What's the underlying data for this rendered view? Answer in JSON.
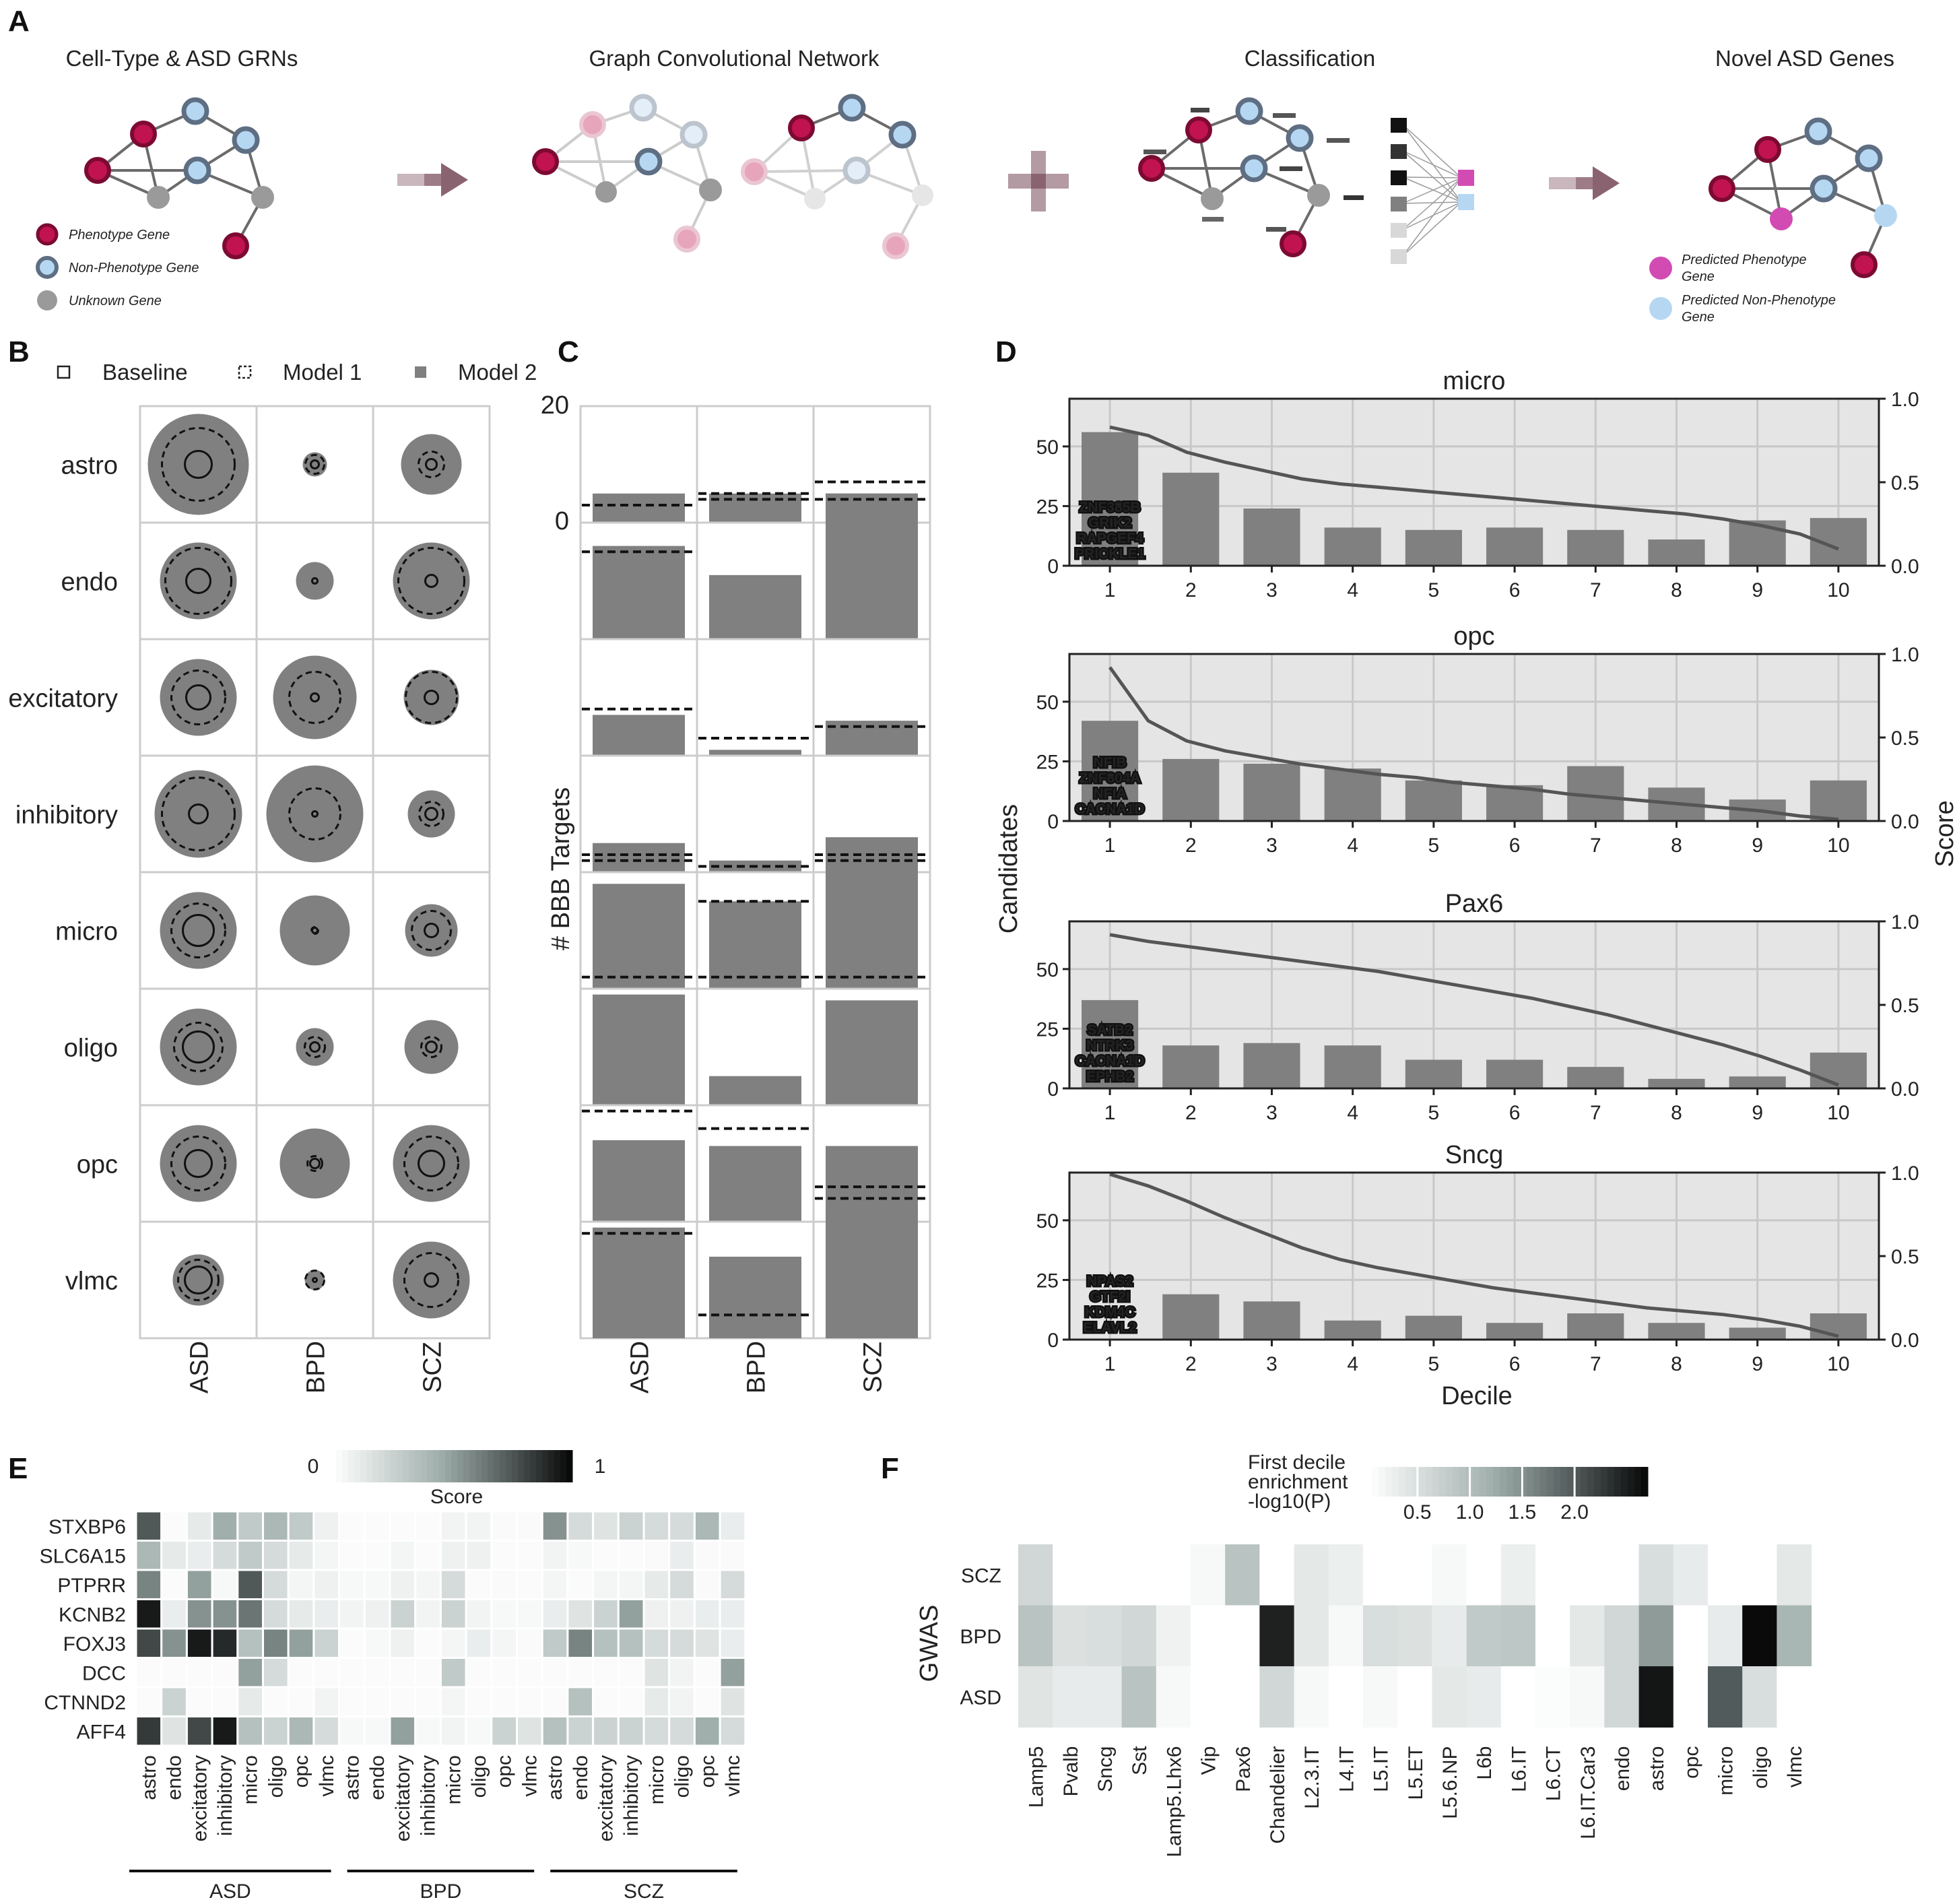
{
  "panel_labels": [
    "A",
    "B",
    "C",
    "D",
    "E",
    "F"
  ],
  "panelA": {
    "stages": [
      "Cell-Type & ASD GRNs",
      "Graph Convolutional Network",
      "Classification",
      "Novel ASD Genes"
    ],
    "legend_left": [
      "Phenotype Gene",
      "Non-Phenotype Gene",
      "Unknown Gene"
    ],
    "legend_right": [
      [
        "Predicted Phenotype",
        "Gene"
      ],
      [
        "Predicted Non-Phenotype",
        "Gene"
      ]
    ],
    "colors": {
      "phenotype": "#c0134f",
      "non_phenotype": "#5e6e83",
      "unknown": "#9a9a9a",
      "pred_pheno": "#d24bb3",
      "pred_non": "#b6d7f2"
    }
  },
  "panelB": {
    "legend": [
      "Baseline",
      "Model 1",
      "Model 2"
    ],
    "rows": [
      "astro",
      "endo",
      "excitatory",
      "inhibitory",
      "micro",
      "oligo",
      "opc",
      "vlmc"
    ],
    "cols": [
      "ASD",
      "BPD",
      "SCZ"
    ],
    "model2_radius": [
      [
        75,
        18,
        45
      ],
      [
        57,
        28,
        57
      ],
      [
        57,
        62,
        41
      ],
      [
        65,
        72,
        35
      ],
      [
        57,
        52,
        39
      ],
      [
        57,
        28,
        40
      ],
      [
        57,
        52,
        57
      ],
      [
        38,
        15,
        57
      ]
    ],
    "model1_radius": [
      [
        54,
        14,
        19
      ],
      [
        49,
        0,
        49
      ],
      [
        40,
        38,
        38
      ],
      [
        54,
        38,
        18
      ],
      [
        40,
        5,
        29
      ],
      [
        36,
        15,
        15
      ],
      [
        40,
        11,
        40
      ],
      [
        30,
        14,
        40
      ]
    ],
    "baseline_radius": [
      [
        20,
        6,
        8
      ],
      [
        18,
        4,
        9
      ],
      [
        18,
        6,
        10
      ],
      [
        14,
        4,
        9
      ],
      [
        23,
        4,
        10
      ],
      [
        23,
        7,
        8
      ],
      [
        20,
        7,
        19
      ],
      [
        20,
        3,
        10
      ]
    ]
  },
  "panelC": {
    "ylabel": "# BBB Targets",
    "ymax_label": "20",
    "ymin_label": "0",
    "cols": [
      "ASD",
      "BPD",
      "SCZ"
    ],
    "chart_data": {
      "type": "bar",
      "ylabel": "# BBB Targets",
      "categories": [
        "ASD",
        "BPD",
        "SCZ"
      ],
      "rows": [
        "astro",
        "endo",
        "excitatory",
        "inhibitory",
        "micro",
        "oligo",
        "opc",
        "vlmc"
      ],
      "ylim": [
        0,
        20
      ],
      "bar_values": [
        [
          5,
          5,
          5
        ],
        [
          16,
          11,
          25
        ],
        [
          7,
          1,
          6
        ],
        [
          5,
          2,
          6
        ],
        [
          18,
          15,
          22
        ],
        [
          19,
          5,
          18
        ],
        [
          14,
          13,
          13
        ],
        [
          19,
          14,
          25
        ]
      ],
      "dashed_values": [
        [
          3,
          5,
          7
        ],
        [
          15,
          24,
          24
        ],
        [
          8,
          3,
          5
        ],
        [
          3,
          1,
          3
        ],
        [
          22,
          15,
          22
        ],
        [
          22,
          22,
          22
        ],
        [
          19,
          16,
          6
        ],
        [
          18,
          4,
          24
        ]
      ]
    }
  },
  "panelD": {
    "ylabel_left": "Candidates",
    "ylabel_right": "Score",
    "xlabel": "Decile",
    "left_ticks": [
      "0",
      "25",
      "50"
    ],
    "right_ticks": [
      "0.0",
      "0.5",
      "1.0"
    ],
    "deciles": [
      "1",
      "2",
      "3",
      "4",
      "5",
      "6",
      "7",
      "8",
      "9",
      "10"
    ],
    "chart_data": [
      {
        "type": "bar",
        "title": "micro",
        "x": [
          1,
          2,
          3,
          4,
          5,
          6,
          7,
          8,
          9,
          10
        ],
        "values": [
          56,
          39,
          24,
          16,
          15,
          16,
          15,
          11,
          19,
          20
        ],
        "ylim": [
          0,
          70
        ],
        "genes": [
          "ZNF385B",
          "GRIK2",
          "RAPGEF4",
          "PRICKLE1"
        ],
        "score_curve": [
          0.83,
          0.78,
          0.68,
          0.62,
          0.57,
          0.52,
          0.49,
          0.47,
          0.45,
          0.43,
          0.41,
          0.39,
          0.37,
          0.35,
          0.33,
          0.31,
          0.28,
          0.24,
          0.19,
          0.1
        ]
      },
      {
        "type": "bar",
        "title": "opc",
        "x": [
          1,
          2,
          3,
          4,
          5,
          6,
          7,
          8,
          9,
          10
        ],
        "values": [
          42,
          26,
          24,
          22,
          17,
          15,
          23,
          14,
          9,
          17
        ],
        "ylim": [
          0,
          70
        ],
        "genes": [
          "NFIB",
          "ZNF804A",
          "NFIA",
          "CACNA1D"
        ],
        "score_curve": [
          0.92,
          0.6,
          0.48,
          0.42,
          0.38,
          0.34,
          0.31,
          0.28,
          0.26,
          0.23,
          0.21,
          0.19,
          0.16,
          0.14,
          0.12,
          0.1,
          0.08,
          0.06,
          0.03,
          0.01
        ]
      },
      {
        "type": "bar",
        "title": "Pax6",
        "x": [
          1,
          2,
          3,
          4,
          5,
          6,
          7,
          8,
          9,
          10
        ],
        "values": [
          37,
          18,
          19,
          18,
          12,
          12,
          9,
          4,
          5,
          15
        ],
        "ylim": [
          0,
          70
        ],
        "genes": [
          "SATB2",
          "NTRK3",
          "CACNA1D",
          "EPHB2"
        ],
        "score_curve": [
          0.92,
          0.88,
          0.85,
          0.82,
          0.79,
          0.76,
          0.73,
          0.7,
          0.66,
          0.62,
          0.58,
          0.54,
          0.49,
          0.44,
          0.38,
          0.32,
          0.26,
          0.19,
          0.11,
          0.02
        ]
      },
      {
        "type": "bar",
        "title": "Sncg",
        "x": [
          1,
          2,
          3,
          4,
          5,
          6,
          7,
          8,
          9,
          10
        ],
        "values": [
          0,
          19,
          16,
          8,
          10,
          7,
          11,
          7,
          5,
          11
        ],
        "ylim": [
          0,
          70
        ],
        "genes": [
          "NPAS2",
          "GTF2I",
          "KDM4C",
          "ELAVL2"
        ],
        "score_curve": [
          0.99,
          0.92,
          0.83,
          0.73,
          0.64,
          0.55,
          0.48,
          0.43,
          0.39,
          0.35,
          0.31,
          0.28,
          0.25,
          0.22,
          0.19,
          0.17,
          0.15,
          0.12,
          0.08,
          0.02
        ]
      }
    ]
  },
  "panelE": {
    "colorbar_min": "0",
    "colorbar_max": "1",
    "colorbar_label": "Score",
    "genes": [
      "STXBP6",
      "SLC6A15",
      "PTPRR",
      "KCNB2",
      "FOXJ3",
      "DCC",
      "CTNND2",
      "AFF4"
    ],
    "celltypes": [
      "astro",
      "endo",
      "excitatory",
      "inhibitory",
      "micro",
      "oligo",
      "opc",
      "vlmc"
    ],
    "groups": [
      "ASD",
      "BPD",
      "SCZ"
    ],
    "chart_data": {
      "type": "heatmap",
      "rows": [
        "STXBP6",
        "SLC6A15",
        "PTPRR",
        "KCNB2",
        "FOXJ3",
        "DCC",
        "CTNND2",
        "AFF4"
      ],
      "values": [
        [
          0.75,
          0.02,
          0.12,
          0.45,
          0.3,
          0.4,
          0.3,
          0.08,
          0.02,
          0.02,
          0.02,
          0.02,
          0.06,
          0.06,
          0.03,
          0.03,
          0.55,
          0.2,
          0.15,
          0.25,
          0.2,
          0.2,
          0.4,
          0.1
        ],
        [
          0.4,
          0.12,
          0.1,
          0.2,
          0.3,
          0.2,
          0.12,
          0.05,
          0.02,
          0.02,
          0.05,
          0.02,
          0.08,
          0.08,
          0.02,
          0.02,
          0.06,
          0.04,
          0.02,
          0.02,
          0.03,
          0.1,
          0.03,
          0.03
        ],
        [
          0.6,
          0.02,
          0.5,
          0.04,
          0.75,
          0.2,
          0.05,
          0.08,
          0.04,
          0.04,
          0.08,
          0.05,
          0.2,
          0.02,
          0.03,
          0.02,
          0.05,
          0.02,
          0.05,
          0.05,
          0.12,
          0.2,
          0.03,
          0.2
        ],
        [
          0.95,
          0.1,
          0.55,
          0.55,
          0.65,
          0.2,
          0.12,
          0.1,
          0.06,
          0.08,
          0.25,
          0.06,
          0.25,
          0.06,
          0.04,
          0.04,
          0.1,
          0.15,
          0.25,
          0.5,
          0.08,
          0.08,
          0.1,
          0.1
        ],
        [
          0.8,
          0.55,
          0.95,
          0.9,
          0.35,
          0.6,
          0.5,
          0.25,
          0.02,
          0.04,
          0.08,
          0.02,
          0.05,
          0.1,
          0.05,
          0.03,
          0.3,
          0.6,
          0.35,
          0.35,
          0.2,
          0.2,
          0.15,
          0.1
        ],
        [
          0.02,
          0.02,
          0.02,
          0.02,
          0.5,
          0.2,
          0.02,
          0.02,
          0.02,
          0.02,
          0.02,
          0.02,
          0.3,
          0.02,
          0.02,
          0.02,
          0.02,
          0.02,
          0.02,
          0.02,
          0.15,
          0.06,
          0.02,
          0.5
        ],
        [
          0.02,
          0.25,
          0.02,
          0.02,
          0.12,
          0.02,
          0.02,
          0.06,
          0.02,
          0.02,
          0.02,
          0.02,
          0.05,
          0.02,
          0.02,
          0.02,
          0.02,
          0.35,
          0.02,
          0.02,
          0.12,
          0.06,
          0.02,
          0.15
        ],
        [
          0.85,
          0.15,
          0.8,
          0.95,
          0.35,
          0.25,
          0.4,
          0.2,
          0.04,
          0.04,
          0.5,
          0.04,
          0.06,
          0.04,
          0.25,
          0.15,
          0.35,
          0.25,
          0.25,
          0.25,
          0.2,
          0.2,
          0.45,
          0.2
        ]
      ]
    }
  },
  "panelF": {
    "colorbar_title": [
      "First decile",
      "enrichment",
      "-log10(P)"
    ],
    "colorbar_ticks": [
      "0.5",
      "1.0",
      "1.5",
      "2.0"
    ],
    "ylabel": "GWAS",
    "rows": [
      "SCZ",
      "BPD",
      "ASD"
    ],
    "celltypes": [
      "Lamp5",
      "Pvalb",
      "Sncg",
      "Sst",
      "Lamp5.Lhx6",
      "Vip",
      "Pax6",
      "Chandelier",
      "L2.3.IT",
      "L4.IT",
      "L5.IT",
      "L5.ET",
      "L5.6.NP",
      "L6b",
      "L6.IT",
      "L6.CT",
      "L6.IT.Car3",
      "endo",
      "astro",
      "opc",
      "micro",
      "oligo",
      "vlmc"
    ],
    "chart_data": {
      "type": "heatmap",
      "rows": [
        "SCZ",
        "BPD",
        "ASD"
      ],
      "values": [
        [
          0.6,
          0.0,
          0.0,
          0.0,
          0.0,
          0.1,
          0.9,
          0.0,
          0.35,
          0.25,
          0.0,
          0.0,
          0.1,
          0.0,
          0.25,
          0.0,
          0.0,
          0.0,
          0.5,
          0.3,
          0.0,
          0.0,
          0.35
        ],
        [
          0.9,
          0.45,
          0.5,
          0.6,
          0.2,
          0.0,
          0.0,
          2.5,
          0.35,
          0.1,
          0.5,
          0.45,
          0.3,
          0.8,
          0.85,
          0.0,
          0.35,
          0.6,
          1.4,
          0.0,
          0.3,
          2.7,
          1.1
        ],
        [
          0.4,
          0.3,
          0.3,
          0.9,
          0.1,
          0.0,
          0.0,
          0.6,
          0.1,
          0.0,
          0.1,
          0.0,
          0.35,
          0.3,
          0.0,
          0.05,
          0.1,
          0.6,
          2.6,
          0.0,
          2.0,
          0.5,
          0.0
        ]
      ]
    }
  }
}
